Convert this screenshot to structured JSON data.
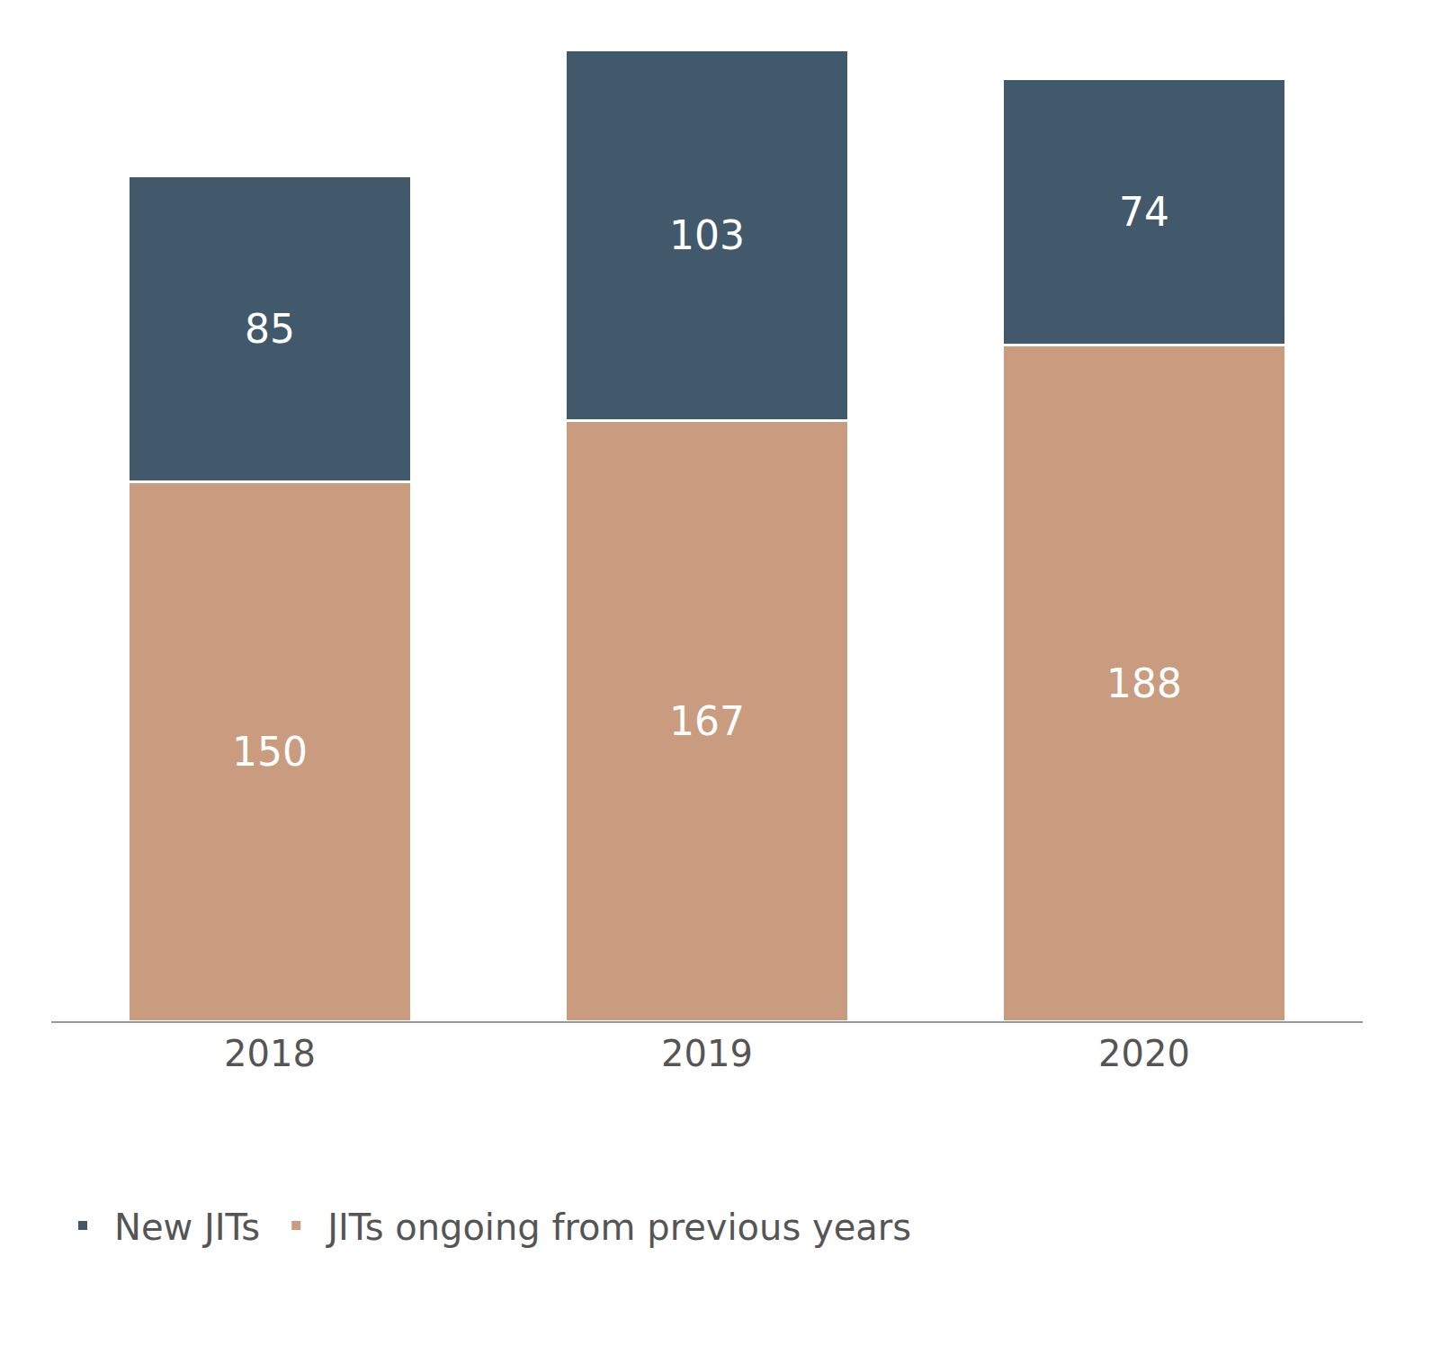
{
  "chart_data": {
    "type": "bar",
    "stacked": true,
    "data_labels": true,
    "tick_labels": "x",
    "grid": false,
    "legend": "bottom",
    "categories": [
      "2018",
      "2019",
      "2020"
    ],
    "series": [
      {
        "name": "New JITs",
        "color": "#42596b",
        "values": [
          85,
          103,
          74
        ]
      },
      {
        "name": "JITs ongoing from previous years",
        "color": "#c99c7f",
        "values": [
          150,
          167,
          188
        ]
      }
    ],
    "ylim": [
      0,
      270
    ]
  }
}
